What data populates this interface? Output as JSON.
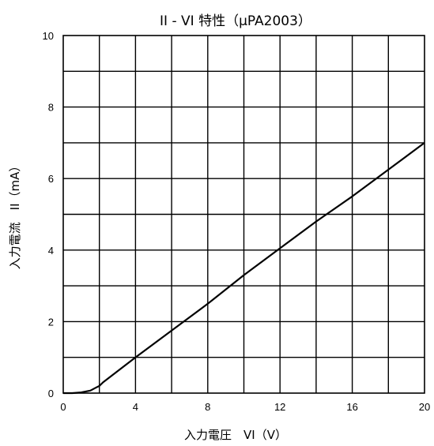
{
  "chart_data": {
    "type": "line",
    "title": "II - VI 特性（μPA2003）",
    "xlabel": "入力電圧　VI（V）",
    "ylabel": "入力電流　II（mA）",
    "xlim": [
      0,
      20
    ],
    "ylim": [
      0,
      10
    ],
    "x_ticks": [
      0,
      4,
      8,
      12,
      16,
      20
    ],
    "y_ticks": [
      0,
      2,
      4,
      6,
      8,
      10
    ],
    "x_tick_labels": [
      "0",
      "4",
      "8",
      "12",
      "16",
      "20"
    ],
    "y_tick_labels": [
      "0",
      "2",
      "4",
      "6",
      "8",
      "10"
    ],
    "grid": true,
    "line_color": "#000000",
    "series": [
      {
        "x": [
          0,
          0.5,
          1.0,
          1.5,
          1.8,
          2.0,
          2.2,
          4,
          6,
          8,
          10,
          12,
          14,
          16,
          18,
          20
        ],
        "y": [
          0,
          0,
          0.02,
          0.07,
          0.15,
          0.2,
          0.3,
          1.0,
          1.75,
          2.5,
          3.3,
          4.05,
          4.8,
          5.5,
          6.25,
          7.0
        ]
      }
    ]
  }
}
